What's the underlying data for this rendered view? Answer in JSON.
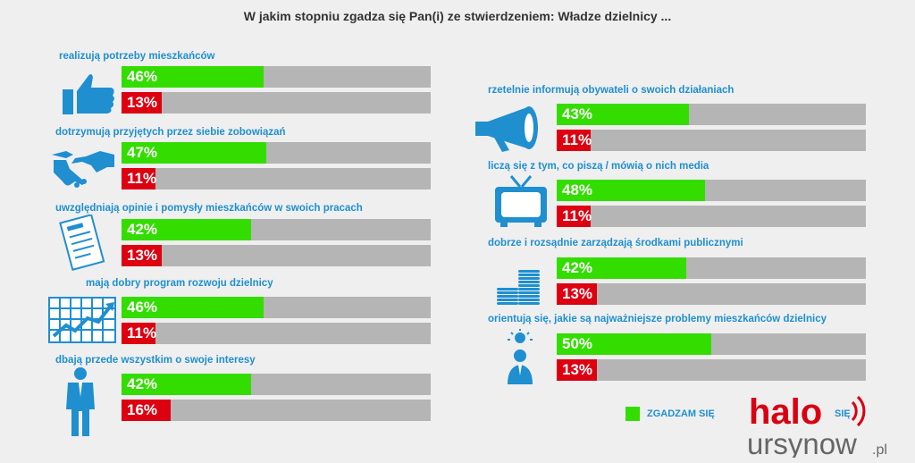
{
  "title": "W jakim stopniu zgadza się Pan(i) ze stwierdzeniem: Władze dzielnicy ...",
  "colors": {
    "agree": "#33dd00",
    "disagree": "#dd0011",
    "track": "#b5b5b5",
    "label": "#1f8fd0",
    "icon": "#1f8fd0"
  },
  "legend": {
    "agree_label": "ZGADZAM SIĘ",
    "disagree_label_fragment": "SIĘ"
  },
  "logo": {
    "text_top": "halo",
    "text_bottom": "ursynow",
    "suffix": ".pl"
  },
  "chart_data": {
    "type": "bar",
    "title": "W jakim stopniu zgadza się Pan(i) ze stwierdzeniem: Władze dzielnicy ...",
    "xlim": [
      0,
      100
    ],
    "series_names": [
      "ZGADZAM SIĘ",
      ""
    ],
    "categories": [
      {
        "label": "realizują potrzeby mieszkańców",
        "agree": 46,
        "agree_text": "46%",
        "disagree": 13,
        "disagree_text": "13%",
        "icon": "thumbs-up-icon"
      },
      {
        "label": "dotrzymują przyjętych przez siebie zobowiązań",
        "agree": 47,
        "agree_text": "47%",
        "disagree": 11,
        "disagree_text": "11%",
        "icon": "handshake-icon"
      },
      {
        "label": "uwzględniają opinie i pomysły mieszkańców w swoich pracach",
        "agree": 42,
        "agree_text": "42%",
        "disagree": 13,
        "disagree_text": "13%",
        "icon": "document-icon"
      },
      {
        "label": "mają dobry program rozwoju dzielnicy",
        "agree": 46,
        "agree_text": "46%",
        "disagree": 11,
        "disagree_text": "11%",
        "icon": "growth-chart-icon"
      },
      {
        "label": "dbają przede wszystkim o swoje interesy",
        "agree": 42,
        "agree_text": "42%",
        "disagree": 16,
        "disagree_text": "16%",
        "icon": "businessman-icon"
      },
      {
        "label": "rzetelnie informują obywateli o swoich działaniach",
        "agree": 43,
        "agree_text": "43%",
        "disagree": 11,
        "disagree_text": "11%",
        "icon": "megaphone-icon"
      },
      {
        "label": "liczą się z tym, co piszą / mówią o nich media",
        "agree": 48,
        "agree_text": "48%",
        "disagree": 11,
        "disagree_text": "11%",
        "icon": "tv-icon"
      },
      {
        "label": "dobrze i rozsądnie zarządzają środkami publicznymi",
        "agree": 42,
        "agree_text": "42%",
        "disagree": 13,
        "disagree_text": "13%",
        "icon": "coins-icon"
      },
      {
        "label": "orientują się, jakie są najważniejsze problemy mieszkańców dzielnicy",
        "agree": 50,
        "agree_text": "50%",
        "disagree": 13,
        "disagree_text": "13%",
        "icon": "idea-person-icon"
      }
    ]
  }
}
